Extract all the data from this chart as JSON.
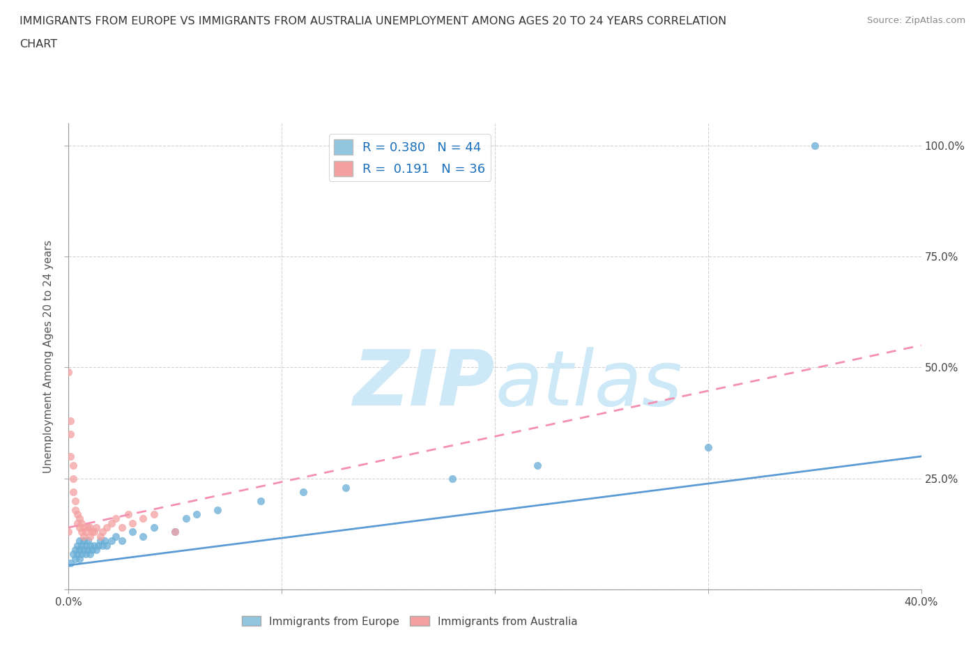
{
  "title_line1": "IMMIGRANTS FROM EUROPE VS IMMIGRANTS FROM AUSTRALIA UNEMPLOYMENT AMONG AGES 20 TO 24 YEARS CORRELATION",
  "title_line2": "CHART",
  "source_text": "Source: ZipAtlas.com",
  "ylabel": "Unemployment Among Ages 20 to 24 years",
  "xlim": [
    0.0,
    0.4
  ],
  "ylim": [
    0.0,
    1.05
  ],
  "legend_europe_R": "0.380",
  "legend_europe_N": "44",
  "legend_australia_R": "0.191",
  "legend_australia_N": "36",
  "europe_color": "#92c5de",
  "australia_color": "#f4a582",
  "europe_scatter_color": "#6aaed6",
  "australia_scatter_color": "#f4a0a0",
  "europe_line_color": "#5b9bd5",
  "australia_line_color": "#f48fb1",
  "watermark_color": "#cde8f7",
  "europe_x": [
    0.001,
    0.002,
    0.003,
    0.003,
    0.004,
    0.004,
    0.005,
    0.005,
    0.005,
    0.006,
    0.006,
    0.007,
    0.007,
    0.008,
    0.008,
    0.009,
    0.009,
    0.01,
    0.01,
    0.011,
    0.012,
    0.013,
    0.014,
    0.015,
    0.016,
    0.017,
    0.018,
    0.02,
    0.022,
    0.025,
    0.03,
    0.035,
    0.04,
    0.05,
    0.055,
    0.06,
    0.07,
    0.09,
    0.11,
    0.13,
    0.18,
    0.22,
    0.3,
    0.35
  ],
  "europe_y": [
    0.06,
    0.08,
    0.07,
    0.09,
    0.08,
    0.1,
    0.07,
    0.09,
    0.11,
    0.08,
    0.1,
    0.09,
    0.11,
    0.08,
    0.1,
    0.09,
    0.11,
    0.08,
    0.1,
    0.09,
    0.1,
    0.09,
    0.1,
    0.11,
    0.1,
    0.11,
    0.1,
    0.11,
    0.12,
    0.11,
    0.13,
    0.12,
    0.14,
    0.13,
    0.16,
    0.17,
    0.18,
    0.2,
    0.22,
    0.23,
    0.25,
    0.28,
    0.32,
    1.0
  ],
  "australia_x": [
    0.0,
    0.0,
    0.001,
    0.001,
    0.001,
    0.002,
    0.002,
    0.002,
    0.003,
    0.003,
    0.004,
    0.004,
    0.005,
    0.005,
    0.006,
    0.006,
    0.007,
    0.007,
    0.008,
    0.009,
    0.01,
    0.01,
    0.011,
    0.012,
    0.013,
    0.015,
    0.016,
    0.018,
    0.02,
    0.022,
    0.025,
    0.028,
    0.03,
    0.035,
    0.04,
    0.05
  ],
  "australia_y": [
    0.49,
    0.13,
    0.38,
    0.35,
    0.3,
    0.25,
    0.28,
    0.22,
    0.2,
    0.18,
    0.17,
    0.15,
    0.16,
    0.14,
    0.15,
    0.13,
    0.14,
    0.12,
    0.13,
    0.14,
    0.12,
    0.14,
    0.13,
    0.13,
    0.14,
    0.12,
    0.13,
    0.14,
    0.15,
    0.16,
    0.14,
    0.17,
    0.15,
    0.16,
    0.17,
    0.13
  ],
  "europe_line_x": [
    0.0,
    0.4
  ],
  "europe_line_y": [
    0.055,
    0.3
  ],
  "australia_line_x": [
    0.0,
    0.4
  ],
  "australia_line_y": [
    0.14,
    0.55
  ]
}
